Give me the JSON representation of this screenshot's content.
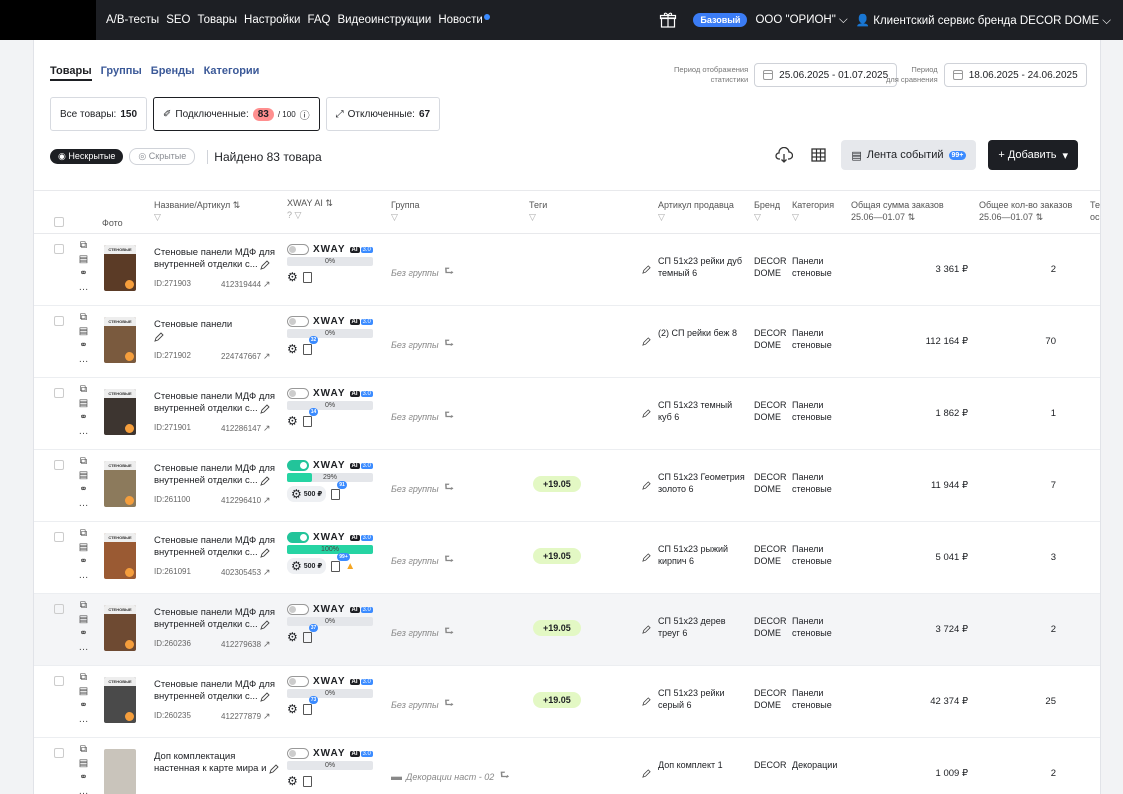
{
  "topnav": {
    "items": [
      "A/B-тесты",
      "SEO",
      "Товары",
      "Настройки",
      "FAQ",
      "Видеоинструкции",
      "Новости"
    ],
    "plan_badge": "Базовый",
    "company": "ООО \"ОРИОН\"",
    "user": "Клиентский сервис бренда DECOR DOME"
  },
  "tabs": [
    "Товары",
    "Группы",
    "Бренды",
    "Категории"
  ],
  "period": {
    "stats_label_1": "Период отображения",
    "stats_label_2": "статистики",
    "stats_range": "25.06.2025 - 01.07.2025",
    "compare_label_1": "Период",
    "compare_label_2": "для сравнения",
    "compare_range": "18.06.2025 - 24.06.2025"
  },
  "filters": {
    "all_label": "Все товары:",
    "all_count": "150",
    "connected_label": "Подключенные:",
    "connected_count": "83",
    "connected_limit": "/ 100",
    "disconnected_label": "Отключенные:",
    "disconnected_count": "67"
  },
  "visibility": {
    "visible": "Нескрытые",
    "hidden": "Скрытые",
    "found": "Найдено 83 товара"
  },
  "toolbar": {
    "feed_label": "Лента событий",
    "feed_badge": "99+",
    "add_label": "+ Добавить"
  },
  "columns": {
    "photo": "Фото",
    "name": "Название/Артикул",
    "xway": "XWAY AI",
    "group": "Группа",
    "tags": "Теги",
    "seller_sku": "Артикул продавца",
    "brand": "Бренд",
    "category": "Категория",
    "sum_1": "Общая сумма заказов",
    "sum_2": "25.06—01.07",
    "qty_1": "Общее кол-во заказов",
    "qty_2": "25.06—01.07",
    "extra_1": "Те",
    "extra_2": "ос"
  },
  "xway_text": {
    "logo": "XWAY",
    "ai": "AI",
    "version": "3.0"
  },
  "rows": [
    {
      "photo_label": "СТЕНОВЫЕ",
      "name_1": "Стеновые панели МДФ для",
      "name_2": "внутренней отделки с...",
      "id": "ID:271903",
      "sku": "412319444",
      "toggle_on": false,
      "progress_label": "0%",
      "progress": 0,
      "price": "",
      "doc_badge": "",
      "warn": false,
      "group": "Без группы",
      "tag": "",
      "seller_1": "СП 51х23 рейки дуб",
      "seller_2": "темный 6",
      "brand_1": "DECOR",
      "brand_2": "DOME",
      "cat_1": "Панели",
      "cat_2": "стеновые",
      "sum": "3 361 ₽",
      "qty": "2",
      "photo_color": "#5b3b26"
    },
    {
      "photo_label": "СТЕНОВЫЕ",
      "name_1": "Стеновые панели",
      "name_2": "",
      "id": "ID:271902",
      "sku": "224747667",
      "toggle_on": false,
      "progress_label": "0%",
      "progress": 0,
      "price": "",
      "doc_badge": "32",
      "warn": false,
      "group": "Без группы",
      "tag": "",
      "seller_1": "(2) СП рейки беж 8",
      "seller_2": "",
      "brand_1": "DECOR",
      "brand_2": "DOME",
      "cat_1": "Панели",
      "cat_2": "стеновые",
      "sum": "112 164 ₽",
      "qty": "70",
      "photo_color": "#7a5a3e"
    },
    {
      "photo_label": "СТЕНОВЫЕ",
      "name_1": "Стеновые панели МДФ для",
      "name_2": "внутренней отделки с...",
      "id": "ID:271901",
      "sku": "412286147",
      "toggle_on": false,
      "progress_label": "0%",
      "progress": 0,
      "price": "",
      "doc_badge": "14",
      "warn": false,
      "group": "Без группы",
      "tag": "",
      "seller_1": "СП 51х23 темный",
      "seller_2": "куб 6",
      "brand_1": "DECOR",
      "brand_2": "DOME",
      "cat_1": "Панели",
      "cat_2": "стеновые",
      "sum": "1 862 ₽",
      "qty": "1",
      "photo_color": "#3d3530"
    },
    {
      "photo_label": "СТЕНОВЫЕ",
      "name_1": "Стеновые панели МДФ для",
      "name_2": "внутренней отделки с...",
      "id": "ID:261100",
      "sku": "412296410",
      "toggle_on": true,
      "progress_label": "29%",
      "progress": 29,
      "price": "500 ₽",
      "doc_badge": "91",
      "warn": false,
      "group": "Без группы",
      "tag": "+19.05",
      "seller_1": "СП 51х23 Геометрия",
      "seller_2": "золото 6",
      "brand_1": "DECOR",
      "brand_2": "DOME",
      "cat_1": "Панели",
      "cat_2": "стеновые",
      "sum": "11 944 ₽",
      "qty": "7",
      "photo_color": "#8c7a5c"
    },
    {
      "photo_label": "СТЕНОВЫЕ",
      "name_1": "Стеновые панели МДФ для",
      "name_2": "внутренней отделки с...",
      "id": "ID:261091",
      "sku": "402305453",
      "toggle_on": true,
      "progress_label": "100%",
      "progress": 100,
      "price": "500 ₽",
      "doc_badge": "99+",
      "warn": true,
      "group": "Без группы",
      "tag": "+19.05",
      "seller_1": "СП 51х23 рыжий",
      "seller_2": "кирпич 6",
      "brand_1": "DECOR",
      "brand_2": "DOME",
      "cat_1": "Панели",
      "cat_2": "стеновые",
      "sum": "5 041 ₽",
      "qty": "3",
      "photo_color": "#9a5a33"
    },
    {
      "photo_label": "СТЕНОВЫЕ",
      "name_1": "Стеновые панели МДФ для",
      "name_2": "внутренней отделки с...",
      "id": "ID:260236",
      "sku": "412279638",
      "toggle_on": false,
      "progress_label": "0%",
      "progress": 0,
      "price": "",
      "doc_badge": "37",
      "warn": false,
      "group": "Без группы",
      "tag": "+19.05",
      "seller_1": "СП 51х23 дерев",
      "seller_2": "треуг 6",
      "brand_1": "DECOR",
      "brand_2": "DOME",
      "cat_1": "Панели",
      "cat_2": "стеновые",
      "sum": "3 724 ₽",
      "qty": "2",
      "photo_color": "#6e4a32"
    },
    {
      "photo_label": "СТЕНОВЫЕ",
      "name_1": "Стеновые панели МДФ для",
      "name_2": "внутренней отделки с...",
      "id": "ID:260235",
      "sku": "412277879",
      "toggle_on": false,
      "progress_label": "0%",
      "progress": 0,
      "price": "",
      "doc_badge": "73",
      "warn": false,
      "group": "Без группы",
      "tag": "+19.05",
      "seller_1": "СП 51х23 рейки",
      "seller_2": "серый 6",
      "brand_1": "DECOR",
      "brand_2": "DOME",
      "cat_1": "Панели",
      "cat_2": "стеновые",
      "sum": "42 374 ₽",
      "qty": "25",
      "photo_color": "#4a4a4a"
    },
    {
      "photo_label": "",
      "name_1": "Доп комплектация",
      "name_2": "настенная к карте мира и",
      "id": "",
      "sku": "",
      "toggle_on": false,
      "progress_label": "0%",
      "progress": 0,
      "price": "",
      "doc_badge": "",
      "warn": false,
      "group": "Декорации наст - 02",
      "tag": "",
      "seller_1": "Доп комплект 1",
      "seller_2": "",
      "brand_1": "DECOR",
      "brand_2": "",
      "cat_1": "Декорации",
      "cat_2": "",
      "sum": "1 009 ₽",
      "qty": "2",
      "photo_color": "#c9c4bb"
    }
  ]
}
